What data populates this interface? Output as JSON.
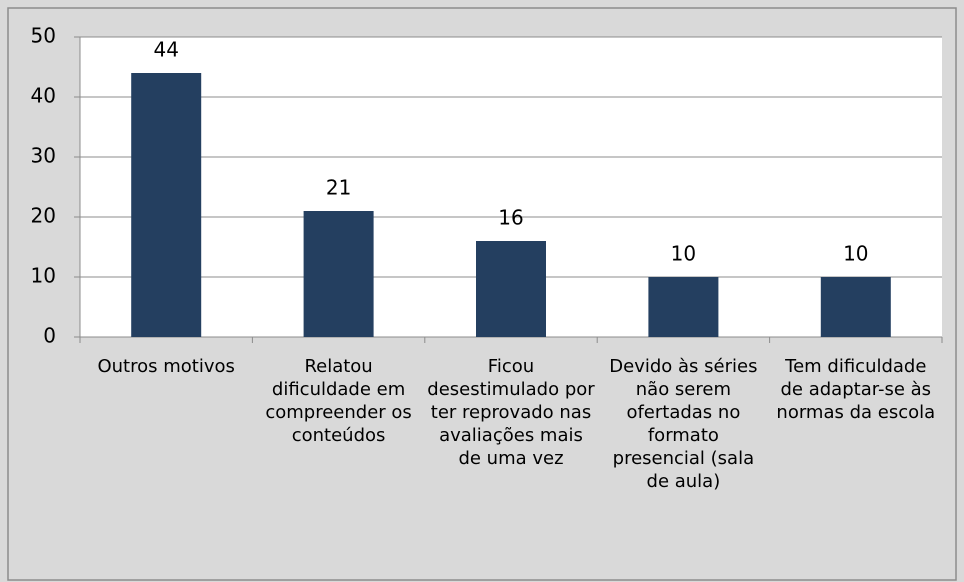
{
  "chart_data": {
    "type": "bar",
    "categories": [
      "Outros motivos",
      "Relatou dificuldade em compreender os conteúdos",
      "Ficou desestimulado por ter reprovado nas avaliações mais de uma vez",
      "Devido às séries não serem ofertadas no formato presencial (sala de aula)",
      "Tem dificuldade de adaptar-se às normas da escola"
    ],
    "values": [
      44,
      21,
      16,
      10,
      10
    ],
    "color": "#243f60",
    "ylim": [
      0,
      50
    ],
    "yticks": [
      0,
      10,
      20,
      30,
      40,
      50
    ],
    "grid": true
  }
}
